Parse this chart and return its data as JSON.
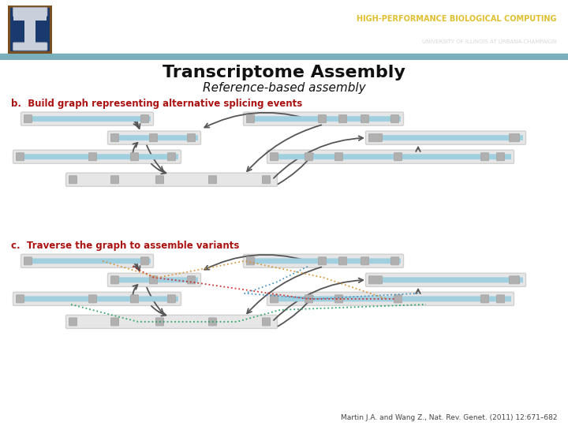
{
  "header_bg": "#5b8fa8",
  "header_strip_bg": "#7ab0bc",
  "body_bg": "#ffffff",
  "title": "Transcriptome Assembly",
  "subtitle": "Reference-based assembly",
  "label_b": "b.  Build graph representing alternative splicing events",
  "label_c": "c.  Traverse the graph to assemble variants",
  "citation": "Martin J.A. and Wang Z., Nat. Rev. Genet. (2011) 12:671–682",
  "label_color": "#aa1111",
  "title_color": "#111111",
  "subtitle_color": "#111111",
  "citation_color": "#444444",
  "header_text1": "HIGH-PERFORMANCE BIOLOGICAL COMPUTING",
  "header_text2": "UNIVERSITY OF ILLINOIS AT URBANA-CHAMPAIGN",
  "header_text1_color": "#e0c030",
  "header_text2_color": "#d8d8d8",
  "bar_outer": "#d0d0d0",
  "bar_fill": "#e6e6e6",
  "bar_blue": "#a0cfe0",
  "bar_exon": "#b0b0b0",
  "arrow_color": "#555555",
  "path_colors": [
    "#cc2020",
    "#d49030",
    "#20a060",
    "#4090c0"
  ]
}
